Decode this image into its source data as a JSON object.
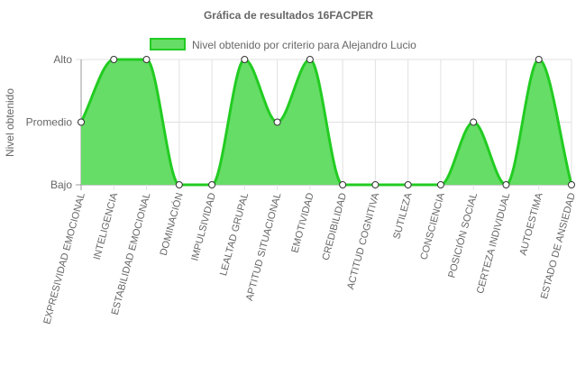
{
  "chart_data": {
    "type": "area",
    "title": "Gráfica de resultados 16FACPER",
    "xlabel": "",
    "ylabel": "Nivel obtenido",
    "y_levels": [
      "Bajo",
      "Promedio",
      "Alto"
    ],
    "ylim": [
      0,
      2
    ],
    "grid": true,
    "legend_position": "top",
    "categories": [
      "EXPRESIVIDAD EMOCIONAL",
      "INTELIGENCIA",
      "ESTABILIDAD EMOCIONAL",
      "DOMINACIÓN",
      "IMPULSIVIDAD",
      "LEALTAD GRUPAL",
      "APTITUD SITUACIONAL",
      "EMOTIVIDAD",
      "CREDIBILIDAD",
      "ACTITUD COGNITIVA",
      "SUTILEZA",
      "CONSCIENCIA",
      "POSICIÓN SOCIAL",
      "CERTEZA INDIVIDUAL",
      "AUTOESTIMA",
      "ESTADO DE ANSIEDAD"
    ],
    "series": [
      {
        "name": "Nivel obtenido por criterio para Alejandro Lucio",
        "values": [
          1,
          2,
          2,
          0,
          0,
          2,
          1,
          2,
          0,
          0,
          0,
          0,
          1,
          0,
          2,
          0
        ]
      }
    ],
    "colors": {
      "fill": "#66dd66",
      "line": "#22cc22",
      "point_fill": "#ffffff",
      "point_stroke": "#333333"
    }
  }
}
